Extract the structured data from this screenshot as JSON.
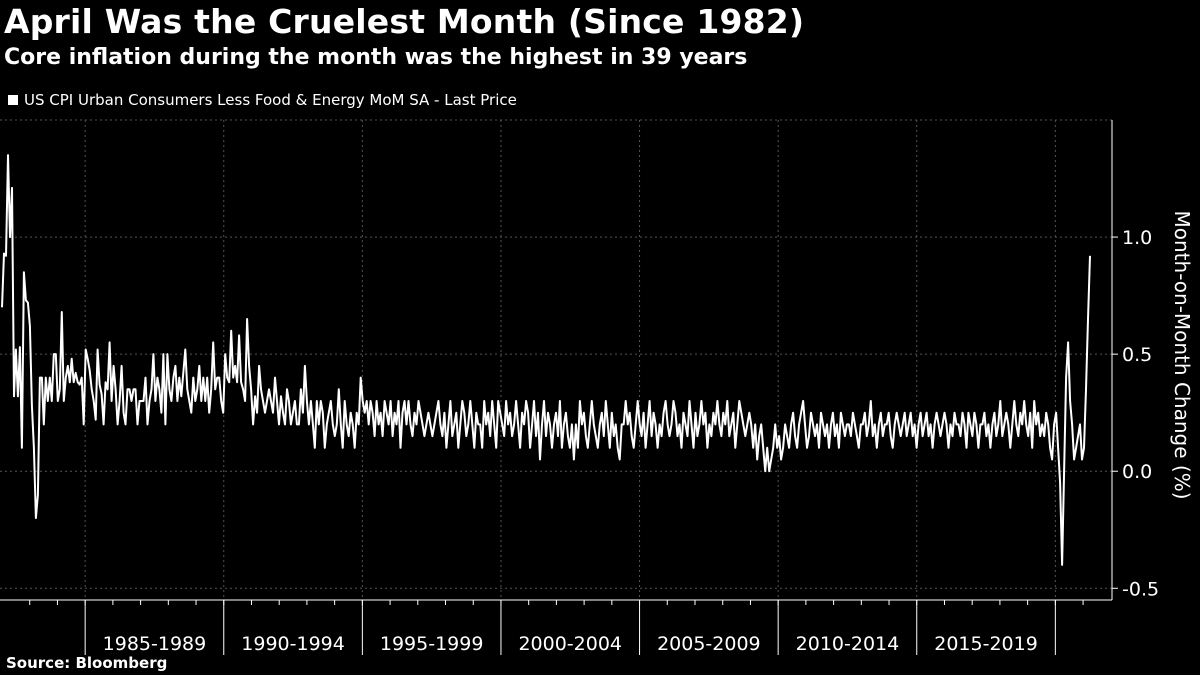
{
  "header": {
    "title": "April Was the Cruelest Month (Since 1982)",
    "subtitle": "Core inflation during the month was the highest in 39 years"
  },
  "footer": {
    "source": "Source: Bloomberg"
  },
  "colors": {
    "background": "#000000",
    "line": "#ffffff",
    "grid": "#555555"
  },
  "chart_data": {
    "type": "line",
    "title": "April Was the Cruelest Month (Since 1982)",
    "subtitle": "Core inflation during the month was the highest in 39 years",
    "ylabel": "Month-on-Month Change (%)",
    "xlabel": "",
    "legend": {
      "position": "top-left",
      "entries": [
        "US CPI Urban Consumers Less Food & Energy MoM SA - Last Price"
      ]
    },
    "grid": true,
    "yaxis_side": "right",
    "x_start": "1982-01",
    "x_end": "2021-04",
    "ylim": [
      -0.55,
      1.5
    ],
    "yticks": [
      -0.5,
      0.0,
      0.5,
      1.0
    ],
    "ytick_labels": [
      "-0.5",
      "0.0",
      "0.5",
      "1.0"
    ],
    "x_period_labels": [
      "1985-1989",
      "1990-1994",
      "1995-1999",
      "2000-2004",
      "2005-2009",
      "2010-2014",
      "2015-2019"
    ],
    "x_period_bounds": [
      "1985-01",
      "1990-01",
      "1995-01",
      "2000-01",
      "2005-01",
      "2010-01",
      "2015-01",
      "2020-01"
    ],
    "series": [
      {
        "name": "US CPI Urban Consumers Less Food & Energy MoM SA - Last Price",
        "frequency": "monthly",
        "values": [
          0.7,
          0.93,
          0.92,
          1.35,
          1.0,
          1.21,
          0.32,
          0.52,
          0.32,
          0.53,
          0.1,
          0.85,
          0.73,
          0.72,
          0.62,
          0.28,
          0.1,
          -0.2,
          -0.1,
          0.4,
          0.4,
          0.2,
          0.4,
          0.3,
          0.4,
          0.3,
          0.5,
          0.5,
          0.3,
          0.35,
          0.68,
          0.3,
          0.4,
          0.45,
          0.38,
          0.48,
          0.38,
          0.42,
          0.38,
          0.37,
          0.4,
          0.2,
          0.52,
          0.48,
          0.43,
          0.35,
          0.3,
          0.22,
          0.52,
          0.37,
          0.33,
          0.2,
          0.38,
          0.35,
          0.55,
          0.3,
          0.45,
          0.35,
          0.2,
          0.3,
          0.45,
          0.25,
          0.2,
          0.35,
          0.35,
          0.3,
          0.35,
          0.35,
          0.2,
          0.3,
          0.3,
          0.3,
          0.4,
          0.2,
          0.3,
          0.35,
          0.5,
          0.3,
          0.4,
          0.35,
          0.25,
          0.5,
          0.2,
          0.5,
          0.35,
          0.3,
          0.4,
          0.45,
          0.3,
          0.4,
          0.32,
          0.42,
          0.52,
          0.35,
          0.3,
          0.25,
          0.4,
          0.3,
          0.35,
          0.45,
          0.3,
          0.4,
          0.3,
          0.4,
          0.25,
          0.35,
          0.55,
          0.35,
          0.4,
          0.4,
          0.3,
          0.25,
          0.5,
          0.4,
          0.38,
          0.6,
          0.4,
          0.45,
          0.38,
          0.58,
          0.38,
          0.35,
          0.3,
          0.65,
          0.45,
          0.35,
          0.2,
          0.32,
          0.25,
          0.45,
          0.35,
          0.3,
          0.25,
          0.3,
          0.35,
          0.3,
          0.25,
          0.4,
          0.3,
          0.2,
          0.32,
          0.25,
          0.2,
          0.35,
          0.3,
          0.2,
          0.25,
          0.3,
          0.2,
          0.2,
          0.35,
          0.25,
          0.45,
          0.3,
          0.2,
          0.3,
          0.2,
          0.1,
          0.3,
          0.2,
          0.3,
          0.25,
          0.1,
          0.2,
          0.25,
          0.3,
          0.2,
          0.15,
          0.2,
          0.35,
          0.2,
          0.1,
          0.3,
          0.2,
          0.15,
          0.25,
          0.2,
          0.1,
          0.25,
          0.2,
          0.4,
          0.3,
          0.25,
          0.3,
          0.2,
          0.3,
          0.25,
          0.15,
          0.3,
          0.2,
          0.25,
          0.15,
          0.3,
          0.25,
          0.2,
          0.3,
          0.15,
          0.25,
          0.2,
          0.3,
          0.1,
          0.25,
          0.3,
          0.2,
          0.3,
          0.2,
          0.15,
          0.25,
          0.2,
          0.3,
          0.25,
          0.2,
          0.15,
          0.2,
          0.25,
          0.2,
          0.15,
          0.2,
          0.25,
          0.3,
          0.2,
          0.15,
          0.25,
          0.1,
          0.2,
          0.3,
          0.15,
          0.2,
          0.25,
          0.1,
          0.2,
          0.3,
          0.25,
          0.15,
          0.2,
          0.3,
          0.2,
          0.1,
          0.25,
          0.2,
          0.2,
          0.1,
          0.3,
          0.2,
          0.25,
          0.15,
          0.3,
          0.2,
          0.1,
          0.3,
          0.25,
          0.2,
          0.15,
          0.3,
          0.2,
          0.25,
          0.15,
          0.2,
          0.3,
          0.2,
          0.1,
          0.25,
          0.2,
          0.3,
          0.25,
          0.1,
          0.2,
          0.3,
          0.15,
          0.25,
          0.05,
          0.2,
          0.3,
          0.15,
          0.25,
          0.2,
          0.1,
          0.2,
          0.25,
          0.15,
          0.3,
          0.1,
          0.2,
          0.25,
          0.15,
          0.1,
          0.2,
          0.05,
          0.2,
          0.1,
          0.3,
          0.2,
          0.25,
          0.15,
          0.1,
          0.2,
          0.3,
          0.2,
          0.15,
          0.1,
          0.2,
          0.25,
          0.15,
          0.3,
          0.2,
          0.1,
          0.25,
          0.15,
          0.2,
          0.1,
          0.05,
          0.2,
          0.2,
          0.3,
          0.2,
          0.25,
          0.15,
          0.1,
          0.2,
          0.3,
          0.2,
          0.15,
          0.25,
          0.1,
          0.2,
          0.3,
          0.15,
          0.25,
          0.2,
          0.1,
          0.2,
          0.15,
          0.25,
          0.3,
          0.2,
          0.15,
          0.2,
          0.3,
          0.25,
          0.15,
          0.2,
          0.1,
          0.25,
          0.2,
          0.15,
          0.3,
          0.2,
          0.1,
          0.25,
          0.15,
          0.2,
          0.3,
          0.2,
          0.25,
          0.1,
          0.2,
          0.15,
          0.25,
          0.2,
          0.3,
          0.2,
          0.15,
          0.25,
          0.2,
          0.3,
          0.15,
          0.2,
          0.25,
          0.1,
          0.2,
          0.3,
          0.25,
          0.2,
          0.15,
          0.2,
          0.25,
          0.2,
          0.1,
          0.2,
          0.05,
          0.15,
          0.2,
          0.1,
          0.0,
          0.1,
          0.0,
          0.05,
          0.1,
          0.2,
          0.1,
          0.15,
          0.05,
          0.1,
          0.2,
          0.15,
          0.1,
          0.2,
          0.25,
          0.15,
          0.1,
          0.2,
          0.25,
          0.3,
          0.2,
          0.1,
          0.15,
          0.25,
          0.2,
          0.15,
          0.2,
          0.1,
          0.25,
          0.2,
          0.15,
          0.2,
          0.1,
          0.2,
          0.25,
          0.15,
          0.2,
          0.1,
          0.25,
          0.2,
          0.15,
          0.2,
          0.2,
          0.15,
          0.25,
          0.2,
          0.15,
          0.1,
          0.2,
          0.2,
          0.25,
          0.15,
          0.2,
          0.3,
          0.15,
          0.2,
          0.1,
          0.2,
          0.25,
          0.15,
          0.2,
          0.2,
          0.25,
          0.15,
          0.1,
          0.2,
          0.25,
          0.2,
          0.15,
          0.2,
          0.25,
          0.15,
          0.2,
          0.25,
          0.15,
          0.2,
          0.1,
          0.2,
          0.25,
          0.15,
          0.2,
          0.25,
          0.15,
          0.2,
          0.1,
          0.2,
          0.25,
          0.2,
          0.15,
          0.2,
          0.25,
          0.2,
          0.1,
          0.2,
          0.15,
          0.25,
          0.2,
          0.2,
          0.15,
          0.25,
          0.2,
          0.1,
          0.25,
          0.2,
          0.15,
          0.25,
          0.2,
          0.1,
          0.2,
          0.2,
          0.25,
          0.15,
          0.2,
          0.1,
          0.2,
          0.25,
          0.15,
          0.2,
          0.3,
          0.15,
          0.2,
          0.25,
          0.2,
          0.1,
          0.2,
          0.3,
          0.2,
          0.15,
          0.25,
          0.2,
          0.3,
          0.2,
          0.15,
          0.25,
          0.1,
          0.3,
          0.2,
          0.25,
          0.15,
          0.2,
          0.15,
          0.25,
          0.2,
          0.1,
          0.05,
          0.2,
          0.25,
          0.1,
          -0.05,
          -0.4,
          0.0,
          0.4,
          0.55,
          0.3,
          0.2,
          0.05,
          0.1,
          0.15,
          0.2,
          0.05,
          0.1,
          0.35,
          0.65,
          0.92
        ]
      }
    ]
  }
}
